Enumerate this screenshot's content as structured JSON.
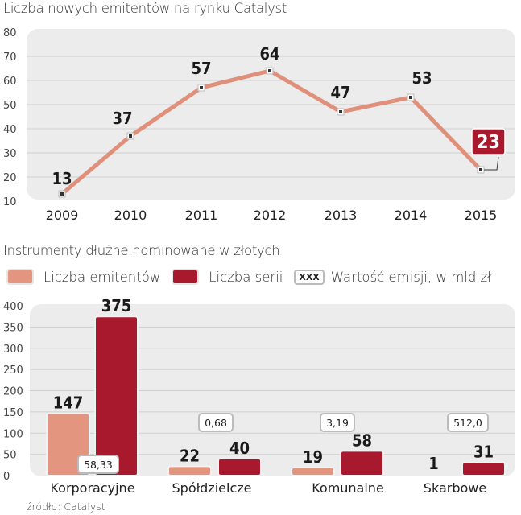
{
  "chart_data": [
    {
      "type": "line",
      "title": "Liczba nowych emitentów na rynku Catalyst",
      "xlabel": "",
      "ylabel": "",
      "x": [
        "2009",
        "2010",
        "2011",
        "2012",
        "2013",
        "2014",
        "2015"
      ],
      "values": [
        13,
        37,
        57,
        64,
        47,
        53,
        23
      ],
      "ylim": [
        10,
        80
      ],
      "yticks": [
        10,
        20,
        30,
        40,
        50,
        60,
        70,
        80
      ],
      "grid": true,
      "highlight": {
        "index": 6,
        "color": "#a8192e"
      },
      "line_color": "#e0907a"
    },
    {
      "type": "bar",
      "title": "Instrumenty dłużne  nominowane w złotych",
      "categories": [
        "Korporacyjne",
        "Spółdzielcze",
        "Komunalne",
        "Skarbowe"
      ],
      "series": [
        {
          "name": "Liczba emitentów",
          "values": [
            147,
            22,
            19,
            1
          ],
          "color": "#e39580"
        },
        {
          "name": "Liczba serii",
          "values": [
            375,
            40,
            58,
            31
          ],
          "color": "#a8192e"
        }
      ],
      "annotations": {
        "name": "Wartość emisji, w mld zł",
        "values": [
          "58,33",
          "0,68",
          "3,19",
          "512,0"
        ]
      },
      "ylim": [
        0,
        400
      ],
      "yticks": [
        0,
        50,
        100,
        150,
        200,
        250,
        300,
        350,
        400
      ],
      "grid": true,
      "legend_position": "top-left"
    }
  ],
  "legend": {
    "item1": "Liczba emitentów",
    "item2": "Liczba serii",
    "item3_box": "XXX",
    "item3": "Wartość emisji, w mld zł"
  },
  "source": "źródło: Catalyst"
}
